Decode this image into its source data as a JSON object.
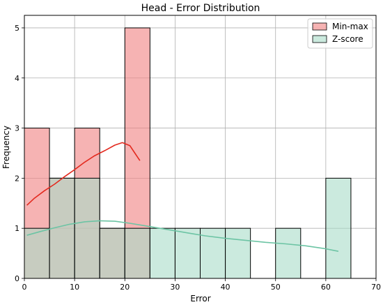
{
  "chart_data": {
    "type": "histogram",
    "title": "Head - Error Distribution",
    "xlabel": "Error",
    "ylabel": "Frequency",
    "xlim": [
      0,
      70
    ],
    "ylim": [
      0,
      5.25
    ],
    "xticks": [
      0,
      10,
      20,
      30,
      40,
      50,
      60,
      70
    ],
    "yticks": [
      0,
      1,
      2,
      3,
      4,
      5
    ],
    "grid": true,
    "legend_position": "top-right",
    "series": [
      {
        "name": "Min-max",
        "color": "#f08080",
        "kde_color": "#e32a1f",
        "bins": [
          {
            "x0": 0,
            "x1": 5,
            "count": 3
          },
          {
            "x0": 5,
            "x1": 10,
            "count": 2
          },
          {
            "x0": 10,
            "x1": 15,
            "count": 3
          },
          {
            "x0": 15,
            "x1": 20,
            "count": 1
          },
          {
            "x0": 20,
            "x1": 25,
            "count": 5
          }
        ],
        "kde": [
          [
            0.5,
            1.46
          ],
          [
            2,
            1.6
          ],
          [
            4,
            1.75
          ],
          [
            6,
            1.88
          ],
          [
            8,
            2.03
          ],
          [
            10,
            2.17
          ],
          [
            12,
            2.32
          ],
          [
            14,
            2.45
          ],
          [
            16,
            2.55
          ],
          [
            18,
            2.66
          ],
          [
            19.5,
            2.71
          ],
          [
            21,
            2.65
          ],
          [
            22,
            2.5
          ],
          [
            23,
            2.35
          ]
        ]
      },
      {
        "name": "Z-score",
        "color": "#a8dcc8",
        "kde_color": "#6cc4a4",
        "bins": [
          {
            "x0": 0,
            "x1": 5,
            "count": 1
          },
          {
            "x0": 5,
            "x1": 10,
            "count": 2
          },
          {
            "x0": 10,
            "x1": 15,
            "count": 2
          },
          {
            "x0": 15,
            "x1": 20,
            "count": 1
          },
          {
            "x0": 20,
            "x1": 25,
            "count": 1
          },
          {
            "x0": 25,
            "x1": 30,
            "count": 1
          },
          {
            "x0": 30,
            "x1": 35,
            "count": 1
          },
          {
            "x0": 35,
            "x1": 40,
            "count": 1
          },
          {
            "x0": 40,
            "x1": 45,
            "count": 1
          },
          {
            "x0": 45,
            "x1": 50,
            "count": 0
          },
          {
            "x0": 50,
            "x1": 55,
            "count": 1
          },
          {
            "x0": 55,
            "x1": 60,
            "count": 0
          },
          {
            "x0": 60,
            "x1": 65,
            "count": 2
          }
        ],
        "kde": [
          [
            0.5,
            0.86
          ],
          [
            3,
            0.93
          ],
          [
            6,
            1.01
          ],
          [
            9,
            1.08
          ],
          [
            12,
            1.13
          ],
          [
            15,
            1.15
          ],
          [
            18,
            1.14
          ],
          [
            21,
            1.1
          ],
          [
            24,
            1.05
          ],
          [
            27,
            1.0
          ],
          [
            30,
            0.95
          ],
          [
            33,
            0.9
          ],
          [
            36,
            0.85
          ],
          [
            40,
            0.8
          ],
          [
            44,
            0.76
          ],
          [
            48,
            0.72
          ],
          [
            52,
            0.69
          ],
          [
            56,
            0.65
          ],
          [
            60,
            0.59
          ],
          [
            62.5,
            0.54
          ]
        ]
      }
    ]
  }
}
